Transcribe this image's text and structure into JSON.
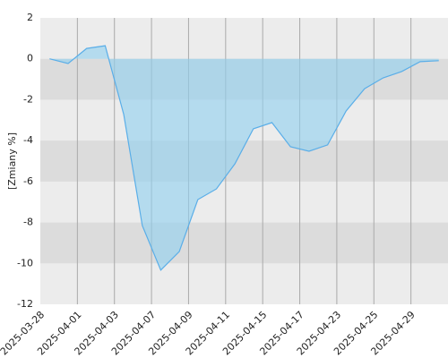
{
  "chart_data": {
    "type": "area",
    "y_label": "[Zmiany %]",
    "categories": [
      "2025-03-28",
      null,
      "2025-04-01",
      null,
      "2025-04-03",
      null,
      "2025-04-07",
      null,
      "2025-04-09",
      null,
      "2025-04-11",
      null,
      "2025-04-15",
      null,
      "2025-04-17",
      null,
      "2025-04-23",
      null,
      "2025-04-25",
      null,
      "2025-04-29",
      null
    ],
    "values": [
      0,
      -0.23,
      0.51,
      0.64,
      -2.72,
      -8.15,
      -10.33,
      -9.42,
      -6.88,
      -6.36,
      -5.13,
      -3.42,
      -3.12,
      -4.3,
      -4.52,
      -4.21,
      -2.55,
      -1.46,
      -0.93,
      -0.62,
      -0.14,
      -0.09
    ],
    "color": "#5aaee8",
    "ylim": [
      -12,
      2
    ],
    "yticks": [
      2,
      0,
      -2,
      -4,
      -6,
      -8,
      -10,
      -12
    ],
    "grid": true
  }
}
